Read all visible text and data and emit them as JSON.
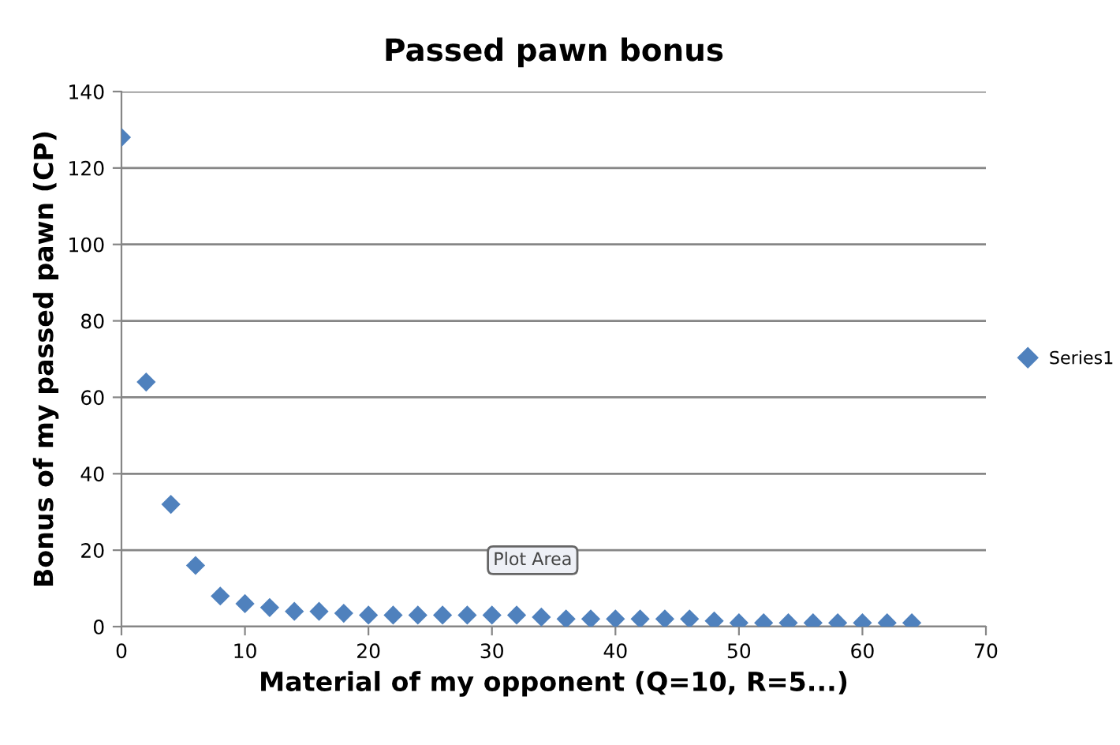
{
  "chart_data": {
    "type": "scatter",
    "title": "Passed pawn bonus",
    "xlabel": "Material of my opponent (Q=10, R=5...)",
    "ylabel": "Bonus of my passed pawn (CP)",
    "x": [
      0,
      2,
      4,
      6,
      8,
      10,
      12,
      14,
      16,
      18,
      20,
      22,
      24,
      26,
      28,
      30,
      32,
      34,
      36,
      38,
      40,
      42,
      44,
      46,
      48,
      50,
      52,
      54,
      56,
      58,
      60,
      62,
      64
    ],
    "series": [
      {
        "name": "Series1",
        "color": "#4f81bd",
        "values": [
          128,
          64,
          32,
          16,
          8,
          6,
          5,
          4,
          4,
          3.5,
          3,
          3,
          3,
          3,
          3,
          3,
          3,
          2.5,
          2,
          2,
          2,
          2,
          2,
          2,
          1.5,
          1,
          1,
          1,
          1,
          1,
          1,
          1,
          1
        ]
      }
    ],
    "xlim": [
      0,
      70
    ],
    "xticks": [
      0,
      10,
      20,
      30,
      40,
      50,
      60,
      70
    ],
    "ylim": [
      0,
      140
    ],
    "yticks": [
      0,
      20,
      40,
      60,
      80,
      100,
      120,
      140
    ],
    "grid": "y",
    "legend": "right",
    "marker": "diamond",
    "annotations": [
      "Plot Area"
    ]
  }
}
